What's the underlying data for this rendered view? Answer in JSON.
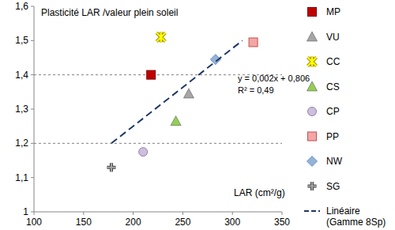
{
  "chart_data": {
    "type": "scatter",
    "title": "Plasticité LAR /valeur plein soleil",
    "x_label": "LAR (cm²/g)",
    "annotations": [
      "y = 0,002x + 0,806",
      "R² = 0,49"
    ],
    "xlim": [
      100,
      350
    ],
    "xticks": [
      100,
      150,
      200,
      250,
      300,
      350
    ],
    "ylim": [
      1,
      1.6
    ],
    "yticks": [
      1,
      {
        "value": 1.1,
        "label": "1,1"
      },
      {
        "value": 1.2,
        "label": "1,2"
      },
      {
        "value": 1.3,
        "label": "1,3"
      },
      {
        "value": 1.4,
        "label": "1,4"
      },
      {
        "value": 1.5,
        "label": "1,5"
      },
      {
        "value": 1.6,
        "label": "1,6"
      }
    ],
    "hlines": [
      1.2,
      1.4
    ],
    "grid": false,
    "legend": "right",
    "series": [
      {
        "name": "MP",
        "color": "#c00000",
        "marker": "square",
        "x": [
          218
        ],
        "values": [
          1.4
        ]
      },
      {
        "name": "VU",
        "color": "#a6a6a6",
        "marker": "triangle",
        "x": [
          256
        ],
        "values": [
          1.345
        ]
      },
      {
        "name": "CC",
        "color": "#ffff00",
        "marker": "star",
        "x": [
          228
        ],
        "values": [
          1.51
        ]
      },
      {
        "name": "CS",
        "color": "#92d050",
        "marker": "triangle",
        "x": [
          243
        ],
        "values": [
          1.265
        ]
      },
      {
        "name": "CP",
        "color": "#ccc0da",
        "marker": "circle",
        "x": [
          210
        ],
        "values": [
          1.175
        ]
      },
      {
        "name": "PP",
        "color": "#f4a6a6",
        "marker": "square",
        "x": [
          321
        ],
        "values": [
          1.495
        ]
      },
      {
        "name": "NW",
        "color": "#95b3d7",
        "marker": "diamond",
        "x": [
          283
        ],
        "values": [
          1.445
        ]
      },
      {
        "name": "SG",
        "color": "#a6a6a6",
        "marker": "plus",
        "x": [
          178
        ],
        "values": [
          1.13
        ]
      },
      {
        "name": "Linéaire (Gamme 8Sp)",
        "color": "#1f3864",
        "type": "line",
        "line_style": "dashed",
        "x": [
          178,
          310
        ],
        "values": [
          1.2,
          1.5
        ]
      }
    ]
  }
}
